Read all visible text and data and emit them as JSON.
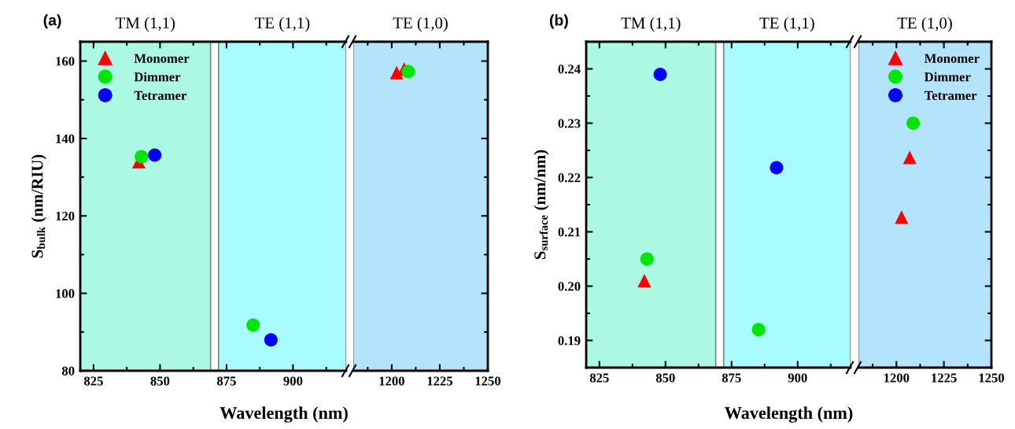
{
  "chart_data": [
    {
      "type": "scatter",
      "title": "(a)",
      "xlabel": "Wavelength (nm)",
      "ylabel": "S$_{bulk}$ (nm/RIU)",
      "xlim": [
        820,
        920
      ],
      "ylim": [
        80,
        165
      ],
      "xticks": [
        825,
        {
          "value": 837.5,
          "label": null
        },
        850,
        {
          "value": 862.5,
          "label": null
        },
        875,
        {
          "value": 887.5,
          "label": null
        },
        900,
        {
          "value": 912.5,
          "label": null
        }
      ],
      "yticks": [
        80,
        {
          "value": 90,
          "label": null
        },
        100,
        {
          "value": 110,
          "label": null
        },
        120,
        {
          "value": 130,
          "label": null
        },
        140,
        {
          "value": 150,
          "label": null
        },
        160
      ],
      "bands": [
        {
          "axis": "x",
          "from": 820,
          "to": 869,
          "label": "TM (1,1)",
          "color": "#abf8e3"
        },
        {
          "axis": "x",
          "from": 872,
          "to": 920,
          "label": "TE (1,1)",
          "color": "#a8fcfd"
        }
      ],
      "legend": "top left",
      "grid": false,
      "series": [
        {
          "name": "Monomer",
          "color": "#ff0000",
          "marker": "triangle",
          "x": [
            842
          ],
          "values": [
            134
          ]
        },
        {
          "name": "Dimmer",
          "color": "#00e600",
          "marker": "circle",
          "x": [
            843,
            885
          ],
          "values": [
            135.3,
            91.8
          ]
        },
        {
          "name": "Tetramer",
          "color": "#0000ff",
          "marker": "circle",
          "x": [
            848,
            891.7
          ],
          "values": [
            135.7,
            88
          ]
        }
      ]
    },
    {
      "type": "scatter",
      "xlim": [
        1180,
        1250
      ],
      "ylim": [
        80,
        165
      ],
      "tick_labels": "x",
      "xticks": [
        {
          "value": 1187.5,
          "label": null
        },
        1200,
        {
          "value": 1212.5,
          "label": null
        },
        1225,
        {
          "value": 1237.5,
          "label": null
        },
        1250
      ],
      "yticks": [
        {
          "value": 80,
          "label": null
        },
        {
          "value": 90,
          "label": null
        },
        {
          "value": 100,
          "label": null
        },
        {
          "value": 110,
          "label": null
        },
        {
          "value": 120,
          "label": null
        },
        {
          "value": 130,
          "label": null
        },
        {
          "value": 140,
          "label": null
        },
        {
          "value": 150,
          "label": null
        },
        {
          "value": 160,
          "label": null
        }
      ],
      "bands": [
        {
          "axis": "x",
          "from": 1180,
          "to": 1250,
          "label": "TE (1,0)",
          "color": "#b4e4fc"
        }
      ],
      "grid": false,
      "series": [
        {
          "color": "#ff0000",
          "marker": "triangle",
          "x": [
            1206.5,
            1202.6
          ],
          "values": [
            158,
            157
          ]
        },
        {
          "color": "#00e600",
          "marker": "circle",
          "x": [
            1208.6
          ],
          "values": [
            157.3
          ]
        }
      ]
    },
    {
      "type": "scatter",
      "title": "(b)",
      "xlabel": "Wavelength (nm)",
      "ylabel": "S$_{surface}$ (nm/nm)",
      "xlim": [
        820,
        920
      ],
      "ylim": [
        0.185,
        0.245
      ],
      "xticks": [
        825,
        {
          "value": 837.5,
          "label": null
        },
        850,
        {
          "value": 862.5,
          "label": null
        },
        875,
        {
          "value": 887.5,
          "label": null
        },
        900,
        {
          "value": 912.5,
          "label": null
        }
      ],
      "yticks": [
        {
          "value": 0.19,
          "label": "0.19"
        },
        {
          "value": 0.195,
          "label": null
        },
        {
          "value": 0.2,
          "label": "0.20"
        },
        {
          "value": 0.205,
          "label": null
        },
        {
          "value": 0.21,
          "label": "0.21"
        },
        {
          "value": 0.215,
          "label": null
        },
        {
          "value": 0.22,
          "label": "0.22"
        },
        {
          "value": 0.225,
          "label": null
        },
        {
          "value": 0.23,
          "label": "0.23"
        },
        {
          "value": 0.235,
          "label": null
        },
        {
          "value": 0.24,
          "label": "0.24"
        }
      ],
      "bands": [
        {
          "axis": "x",
          "from": 820,
          "to": 869,
          "label": "TM (1,1)",
          "color": "#abf8e3"
        },
        {
          "axis": "x",
          "from": 872,
          "to": 920,
          "label": "TE (1,1)",
          "color": "#a8fcfd"
        }
      ],
      "grid": false,
      "series": [
        {
          "color": "#ff0000",
          "marker": "triangle",
          "x": [
            842
          ],
          "values": [
            0.201
          ]
        },
        {
          "color": "#00e600",
          "marker": "circle",
          "x": [
            843,
            885.2
          ],
          "values": [
            0.205,
            0.192
          ]
        },
        {
          "color": "#0000ff",
          "marker": "circle",
          "x": [
            848,
            892
          ],
          "values": [
            0.239,
            0.2218
          ]
        }
      ]
    },
    {
      "type": "scatter",
      "xlim": [
        1180,
        1250
      ],
      "ylim": [
        0.185,
        0.245
      ],
      "tick_labels": "x",
      "xticks": [
        {
          "value": 1187.5,
          "label": null
        },
        1200,
        {
          "value": 1212.5,
          "label": null
        },
        1225,
        {
          "value": 1237.5,
          "label": null
        },
        1250
      ],
      "yticks": [
        {
          "value": 0.19,
          "label": null
        },
        {
          "value": 0.195,
          "label": null
        },
        {
          "value": 0.2,
          "label": null
        },
        {
          "value": 0.205,
          "label": null
        },
        {
          "value": 0.21,
          "label": null
        },
        {
          "value": 0.215,
          "label": null
        },
        {
          "value": 0.22,
          "label": null
        },
        {
          "value": 0.225,
          "label": null
        },
        {
          "value": 0.23,
          "label": null
        },
        {
          "value": 0.235,
          "label": null
        },
        {
          "value": 0.24,
          "label": null
        }
      ],
      "bands": [
        {
          "axis": "x",
          "from": 1180,
          "to": 1250,
          "label": "TE (1,0)",
          "color": "#b4e4fc"
        }
      ],
      "legend": "top right",
      "grid": false,
      "series": [
        {
          "name": "Monomer",
          "color": "#ff0000",
          "marker": "triangle",
          "x": [
            1207,
            1202.7
          ],
          "values": [
            0.2237,
            0.2127
          ]
        },
        {
          "name": "Dimmer",
          "color": "#00e600",
          "marker": "circle",
          "x": [
            1208.8
          ],
          "values": [
            0.23
          ]
        },
        {
          "name": "Tetramer",
          "color": "#0000ff",
          "marker": "circle"
        }
      ]
    }
  ]
}
